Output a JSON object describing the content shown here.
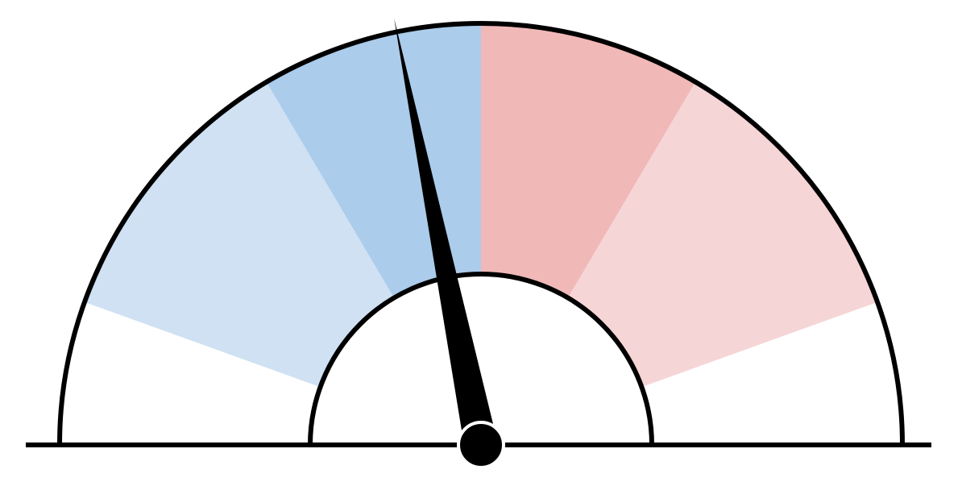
{
  "chart_data": {
    "type": "gauge",
    "title": "",
    "value_fraction": 0.436,
    "range": [
      0,
      1
    ],
    "bands": [
      {
        "from": 0.0,
        "to": 0.11,
        "color": "#ffffff"
      },
      {
        "from": 0.11,
        "to": 0.33,
        "color": "#cfe1f3"
      },
      {
        "from": 0.33,
        "to": 0.5,
        "color": "#abcceb"
      },
      {
        "from": 0.5,
        "to": 0.67,
        "color": "#f1b8b8"
      },
      {
        "from": 0.67,
        "to": 0.89,
        "color": "#f6d5d7"
      },
      {
        "from": 0.89,
        "to": 1.0,
        "color": "#ffffff"
      }
    ],
    "colors": {
      "outline": "#000000",
      "needle": "#000000",
      "hub": "#000000",
      "background": "#ffffff"
    }
  }
}
